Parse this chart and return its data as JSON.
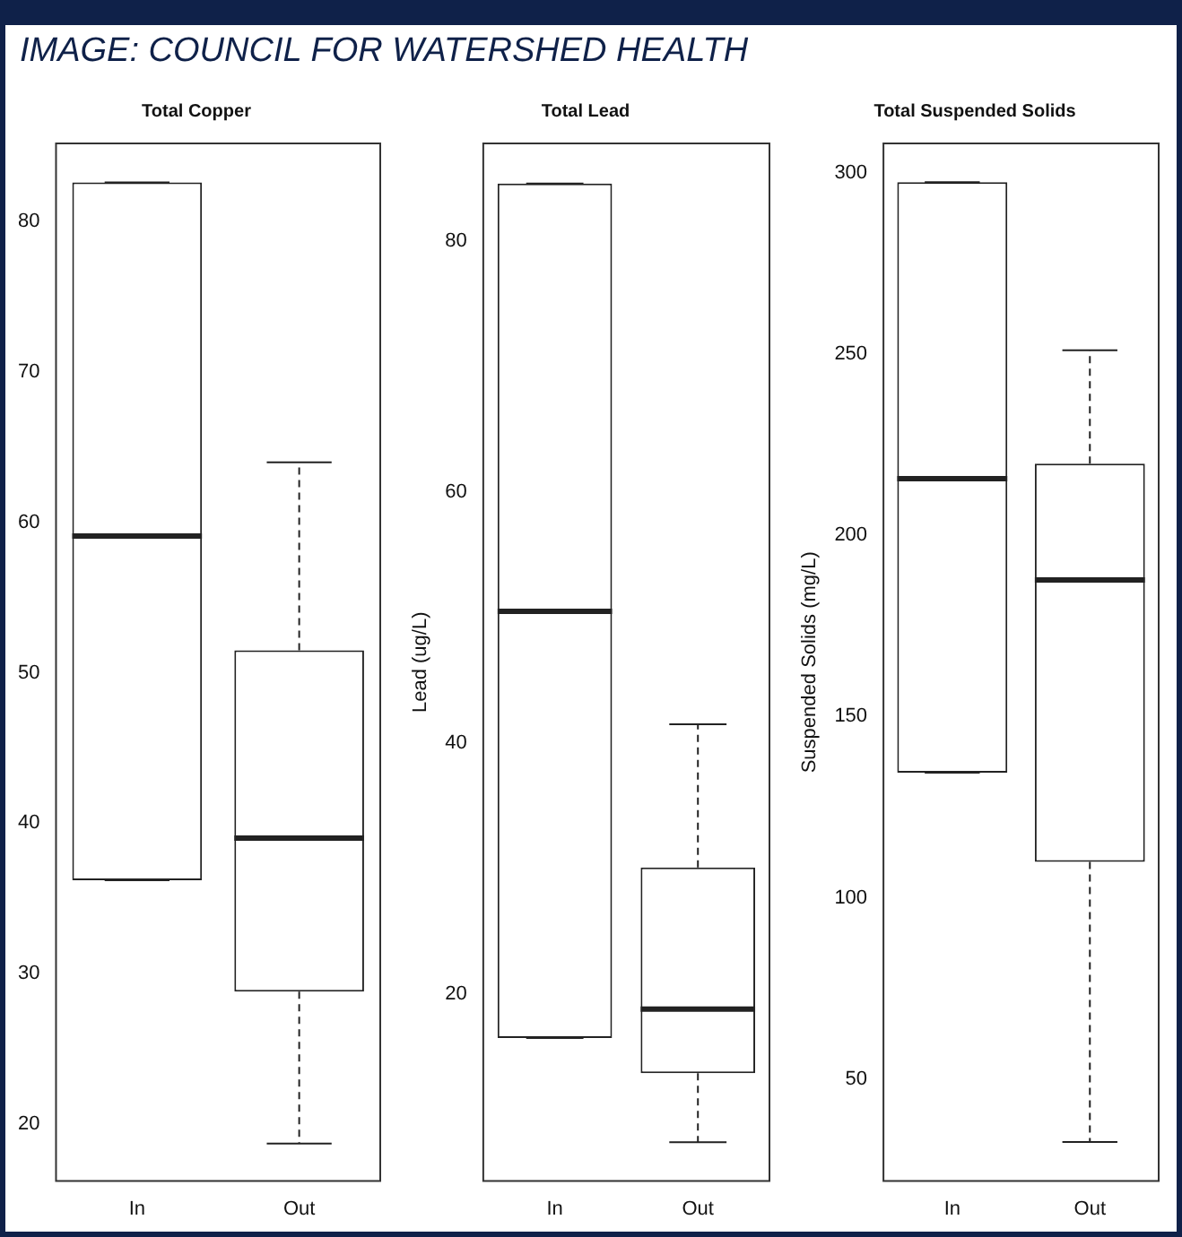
{
  "chart_data": [
    {
      "type": "box",
      "title": "Total Copper",
      "annotations": [
        "IMAGE: COUNCIL FOR WATERSHED HEALTH"
      ],
      "categories": [
        "In",
        "Out"
      ],
      "ylim": [
        16.2,
        85.2
      ],
      "yticks": [
        20,
        30,
        40,
        50,
        60,
        70,
        80
      ],
      "boxes": [
        {
          "low": 36.2,
          "q1": 36.2,
          "median": 59.1,
          "q3": 82.6,
          "high": 82.6
        },
        {
          "low": 18.7,
          "q1": 28.8,
          "median": 39.0,
          "q3": 51.5,
          "high": 64.0
        }
      ]
    },
    {
      "type": "box",
      "title": "Total Lead",
      "ylabel": "Lead (ug/L)",
      "categories": [
        "In",
        "Out"
      ],
      "ylim": [
        5.1,
        87.8
      ],
      "yticks": [
        20,
        40,
        60,
        80
      ],
      "boxes": [
        {
          "low": 16.5,
          "q1": 16.5,
          "median": 50.5,
          "q3": 84.6,
          "high": 84.6
        },
        {
          "low": 8.2,
          "q1": 13.7,
          "median": 18.8,
          "q3": 30.1,
          "high": 41.5
        }
      ]
    },
    {
      "type": "box",
      "title": "Total Suspended Solids",
      "ylabel": "Suspended Solids (mg/L)",
      "categories": [
        "In",
        "Out"
      ],
      "ylim": [
        21.8,
        308.2
      ],
      "yticks": [
        50,
        100,
        150,
        200,
        250,
        300
      ],
      "boxes": [
        {
          "low": 134.5,
          "q1": 134.5,
          "median": 215.7,
          "q3": 297.5,
          "high": 297.5
        },
        {
          "low": 32.6,
          "q1": 109.9,
          "median": 187.7,
          "q3": 219.8,
          "high": 251.1
        }
      ]
    }
  ]
}
